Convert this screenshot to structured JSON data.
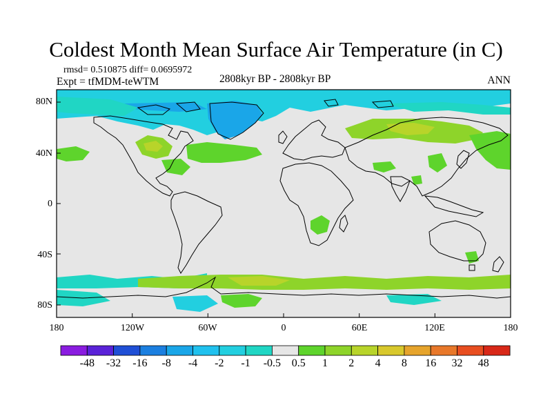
{
  "title": "Coldest Month Mean Surface Air Temperature (in C)",
  "stats": "rmsd= 0.510875  diff= 0.0695972",
  "experiment": "Expt = tfMDM-teWTM",
  "period": "2808kyr BP - 2808kyr BP",
  "season": "ANN",
  "lat_labels": [
    "80N",
    "40N",
    "0",
    "40S",
    "80S"
  ],
  "lon_labels": [
    "180",
    "120W",
    "60W",
    "0",
    "60E",
    "120E",
    "180"
  ],
  "colorbar": {
    "labels": [
      "-48",
      "-32",
      "-16",
      "-8",
      "-4",
      "-2",
      "-1",
      "-0.5",
      "0.5",
      "1",
      "2",
      "4",
      "8",
      "16",
      "32",
      "48"
    ],
    "colors": [
      "#8a1ce0",
      "#5a22d8",
      "#1f4fd6",
      "#1b7fe0",
      "#1aa6e8",
      "#20c1ee",
      "#22cfe0",
      "#20d6c4",
      "#e6e6e6",
      "#5ed42c",
      "#8ed42a",
      "#b8d42a",
      "#d8c82c",
      "#e6a42c",
      "#e8782a",
      "#e84e20",
      "#d82818"
    ]
  },
  "map_colors": {
    "background": "#e6e6e6",
    "coast": "#000000",
    "frame": "#000000"
  }
}
